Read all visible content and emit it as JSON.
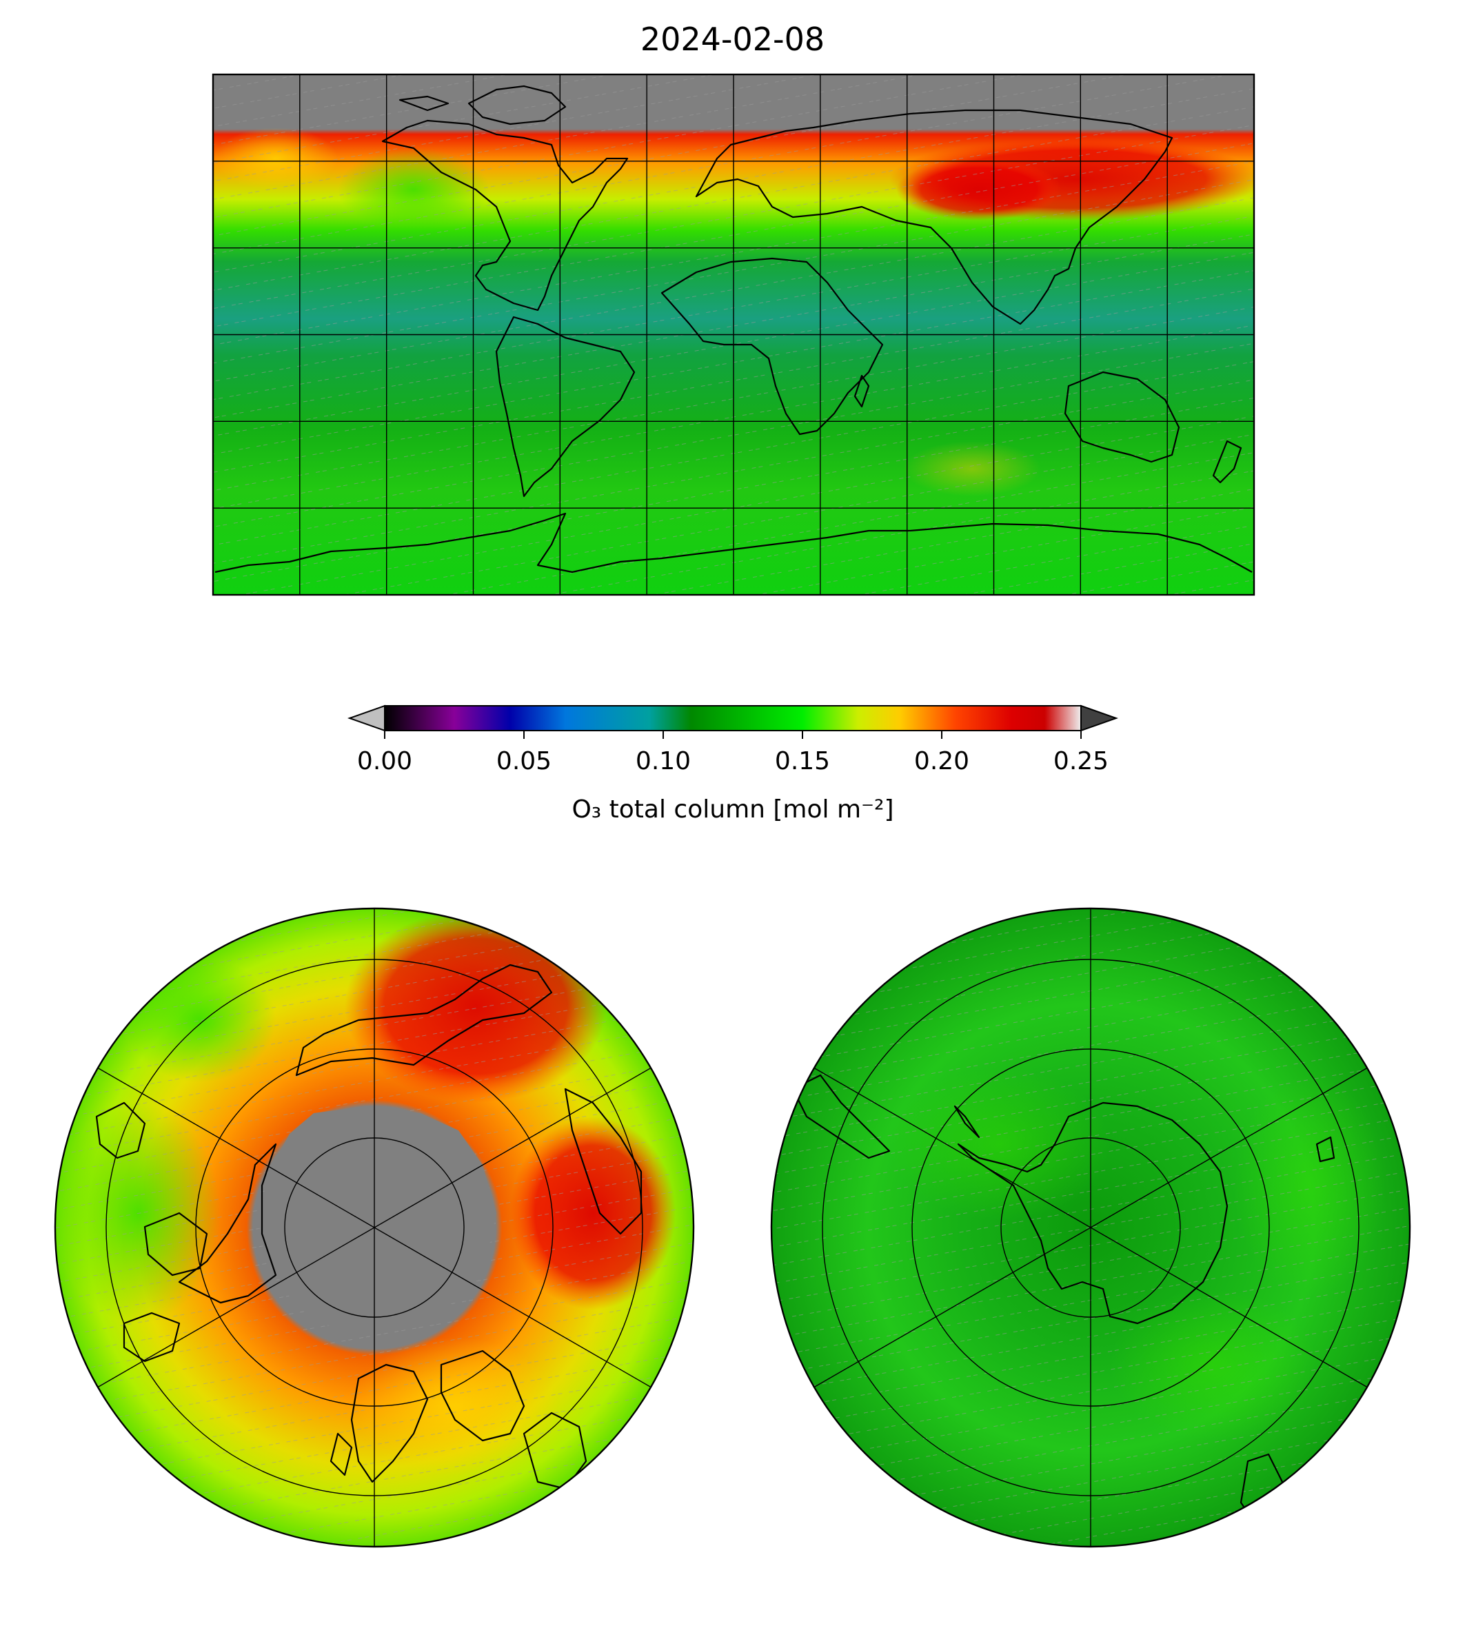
{
  "title": "2024-02-08",
  "colorbar": {
    "label": "O₃ total column [mol m⁻²]",
    "ticks": [
      "0.00",
      "0.05",
      "0.10",
      "0.15",
      "0.20",
      "0.25"
    ],
    "range": [
      0.0,
      0.25
    ],
    "extend": "both",
    "under_color": "#c0c0c0",
    "over_color": "#404040",
    "missing_color": "#808080",
    "colormap_stops": [
      {
        "v": 0.0,
        "c": "#000000"
      },
      {
        "v": 0.025,
        "c": "#880099"
      },
      {
        "v": 0.045,
        "c": "#0000aa"
      },
      {
        "v": 0.065,
        "c": "#0077dd"
      },
      {
        "v": 0.095,
        "c": "#00a0a0"
      },
      {
        "v": 0.11,
        "c": "#008800"
      },
      {
        "v": 0.15,
        "c": "#00ee00"
      },
      {
        "v": 0.17,
        "c": "#ccee00"
      },
      {
        "v": 0.185,
        "c": "#ffcc00"
      },
      {
        "v": 0.205,
        "c": "#ff4400"
      },
      {
        "v": 0.225,
        "c": "#dd0000"
      },
      {
        "v": 0.237,
        "c": "#cc0000"
      },
      {
        "v": 0.25,
        "c": "#eeeeee"
      }
    ]
  },
  "panels": [
    {
      "name": "global",
      "projection": "plate-carree",
      "lon_range": [
        -180,
        180
      ],
      "lat_range": [
        -90,
        90
      ]
    },
    {
      "name": "north-polar",
      "projection": "north-polar-stereographic"
    },
    {
      "name": "south-polar",
      "projection": "south-polar-stereographic"
    }
  ],
  "bands": [
    {
      "lat": "60N-70N",
      "value": 0.2
    },
    {
      "lat": "40N-60N",
      "value": 0.17
    },
    {
      "lat": "20N-40N",
      "value": 0.14
    },
    {
      "lat": "0-20N",
      "value": 0.105
    },
    {
      "lat": "20S-0",
      "value": 0.115
    },
    {
      "lat": "60S-20S",
      "value": 0.135
    },
    {
      "lat": "90S-60S",
      "value": 0.14
    }
  ],
  "colors": {
    "missing": "#808080",
    "land_outline": "#000000",
    "gridline": "#000000"
  }
}
